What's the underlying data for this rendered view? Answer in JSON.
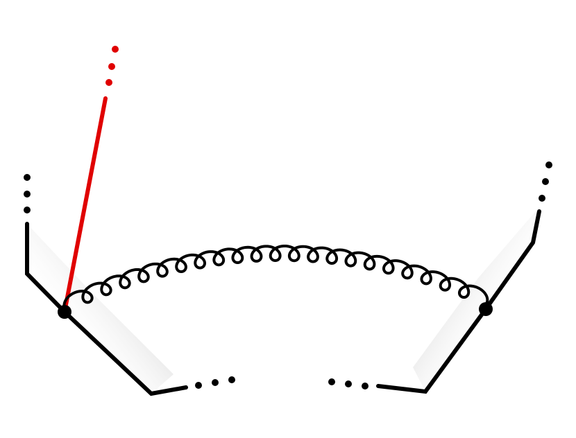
{
  "diagram": {
    "kind": "feynman-diagram",
    "line_color": "#000000",
    "emission_color": "#e00000",
    "shade_color": "#9a9a9a",
    "vertex_count": 2,
    "gluon_loops": 22,
    "elements": [
      {
        "name": "left-wilson-line",
        "kind": "line"
      },
      {
        "name": "right-wilson-line",
        "kind": "line"
      },
      {
        "name": "left-vertex",
        "kind": "vertex"
      },
      {
        "name": "right-vertex",
        "kind": "vertex"
      },
      {
        "name": "gluon-exchange",
        "kind": "gluon"
      },
      {
        "name": "red-emitted-line",
        "kind": "line"
      }
    ]
  }
}
